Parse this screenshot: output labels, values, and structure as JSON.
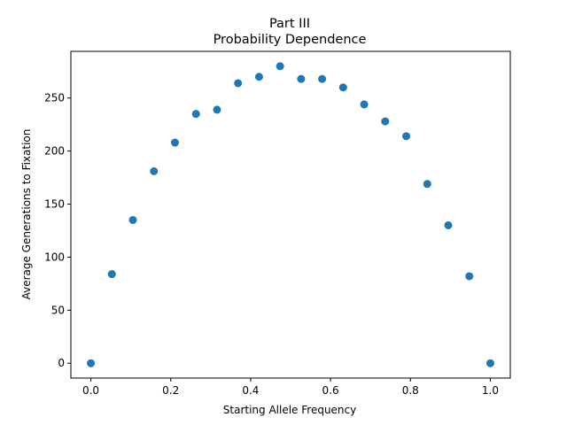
{
  "chart_data": {
    "type": "scatter",
    "title": "Part III",
    "subtitle": "Probability Dependence",
    "xlabel": "Starting Allele Frequency",
    "ylabel": "Average Generations to Fixation",
    "xlim": [
      -0.05,
      1.05
    ],
    "ylim": [
      -14,
      294
    ],
    "xticks": [
      0.0,
      0.2,
      0.4,
      0.6,
      0.8,
      1.0
    ],
    "xtick_labels": [
      "0.0",
      "0.2",
      "0.4",
      "0.6",
      "0.8",
      "1.0"
    ],
    "yticks": [
      0,
      50,
      100,
      150,
      200,
      250
    ],
    "ytick_labels": [
      "0",
      "50",
      "100",
      "150",
      "200",
      "250"
    ],
    "grid": false,
    "legend": "none",
    "marker_color": "#1f77b4",
    "series": [
      {
        "x": [
          0.0,
          0.0526,
          0.1053,
          0.1579,
          0.2105,
          0.2632,
          0.3158,
          0.3684,
          0.4211,
          0.4737,
          0.5263,
          0.5789,
          0.6316,
          0.6842,
          0.7368,
          0.7895,
          0.8421,
          0.8947,
          0.9474,
          1.0
        ],
        "y": [
          0,
          84,
          135,
          181,
          208,
          235,
          239,
          264,
          270,
          280,
          268,
          268,
          260,
          244,
          228,
          214,
          169,
          130,
          82,
          0
        ]
      }
    ]
  }
}
